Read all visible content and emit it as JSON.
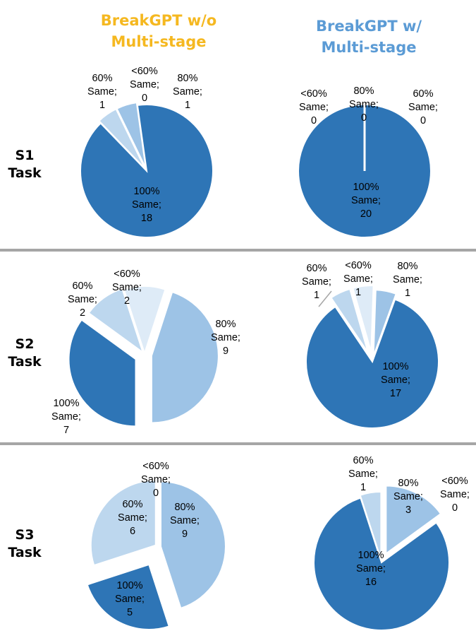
{
  "headers": {
    "left": {
      "line1": "BreakGPT w/o",
      "line2": "Multi-stage",
      "color": "#F5B820"
    },
    "right": {
      "line1": "BreakGPT w/",
      "line2": "Multi-stage",
      "color": "#5B9BD5"
    }
  },
  "rows": [
    {
      "line1": "S1",
      "line2": "Task"
    },
    {
      "line1": "S2",
      "line2": "Task"
    },
    {
      "line1": "S3",
      "line2": "Task"
    }
  ],
  "colors": {
    "100% Same": "#2E75B6",
    "80% Same": "#9DC3E6",
    "60% Same": "#BDD7EE",
    "<60% Same": "#DEEBF7",
    "stroke": "#ffffff",
    "divider": "#a6a6a6"
  },
  "chart_data": [
    {
      "type": "pie",
      "task": "S1",
      "condition": "BreakGPT w/o Multi-stage",
      "slices": [
        {
          "label": "100% Same",
          "value": 18,
          "text": [
            "100%",
            "Same;",
            "18"
          ]
        },
        {
          "label": "60% Same",
          "value": 1,
          "text": [
            "60%",
            "Same;",
            "1"
          ]
        },
        {
          "label": "<60% Same",
          "value": 0,
          "text": [
            "<60%",
            "Same;",
            "0"
          ]
        },
        {
          "label": "80% Same",
          "value": 1,
          "text": [
            "80%",
            "Same;",
            "1"
          ]
        }
      ]
    },
    {
      "type": "pie",
      "task": "S1",
      "condition": "BreakGPT w/ Multi-stage",
      "slices": [
        {
          "label": "100% Same",
          "value": 20,
          "text": [
            "100%",
            "Same;",
            "20"
          ]
        },
        {
          "label": "<60% Same",
          "value": 0,
          "text": [
            "<60%",
            "Same;",
            "0"
          ]
        },
        {
          "label": "80% Same",
          "value": 0,
          "text": [
            "80%",
            "Same;",
            "0"
          ]
        },
        {
          "label": "60% Same",
          "value": 0,
          "text": [
            "60%",
            "Same;",
            "0"
          ]
        }
      ]
    },
    {
      "type": "pie",
      "task": "S2",
      "condition": "BreakGPT w/o Multi-stage",
      "slices": [
        {
          "label": "80% Same",
          "value": 9,
          "text": [
            "80%",
            "Same;",
            "9"
          ]
        },
        {
          "label": "100% Same",
          "value": 7,
          "text": [
            "100%",
            "Same;",
            "7"
          ]
        },
        {
          "label": "60% Same",
          "value": 2,
          "text": [
            "60%",
            "Same;",
            "2"
          ]
        },
        {
          "label": "<60% Same",
          "value": 2,
          "text": [
            "<60%",
            "Same;",
            "2"
          ]
        }
      ]
    },
    {
      "type": "pie",
      "task": "S2",
      "condition": "BreakGPT w/ Multi-stage",
      "slices": [
        {
          "label": "100% Same",
          "value": 17,
          "text": [
            "100%",
            "Same;",
            "17"
          ]
        },
        {
          "label": "60% Same",
          "value": 1,
          "text": [
            "60%",
            "Same;",
            "1"
          ]
        },
        {
          "label": "<60% Same",
          "value": 1,
          "text": [
            "<60%",
            "Same;",
            "1"
          ]
        },
        {
          "label": "80% Same",
          "value": 1,
          "text": [
            "80%",
            "Same;",
            "1"
          ]
        }
      ]
    },
    {
      "type": "pie",
      "task": "S3",
      "condition": "BreakGPT w/o Multi-stage",
      "slices": [
        {
          "label": "80% Same",
          "value": 9,
          "text": [
            "80%",
            "Same;",
            "9"
          ]
        },
        {
          "label": "100% Same",
          "value": 5,
          "text": [
            "100%",
            "Same;",
            "5"
          ]
        },
        {
          "label": "60% Same",
          "value": 6,
          "text": [
            "60%",
            "Same;",
            "6"
          ]
        },
        {
          "label": "<60% Same",
          "value": 0,
          "text": [
            "<60%",
            "Same;",
            "0"
          ]
        }
      ]
    },
    {
      "type": "pie",
      "task": "S3",
      "condition": "BreakGPT w/ Multi-stage",
      "slices": [
        {
          "label": "80% Same",
          "value": 3,
          "text": [
            "80%",
            "Same;",
            "3"
          ]
        },
        {
          "label": "<60% Same",
          "value": 0,
          "text": [
            "<60%",
            "Same;",
            "0"
          ]
        },
        {
          "label": "100% Same",
          "value": 16,
          "text": [
            "100%",
            "Same;",
            "16"
          ]
        },
        {
          "label": "60% Same",
          "value": 1,
          "text": [
            "60%",
            "Same;",
            "1"
          ]
        }
      ]
    }
  ]
}
